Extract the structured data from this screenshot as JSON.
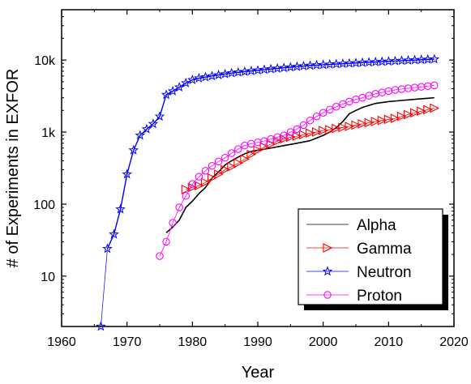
{
  "chart_data": {
    "type": "line",
    "xlabel": "Year",
    "ylabel": "# of Experiments in EXFOR",
    "xlim": [
      1960,
      2020
    ],
    "ylim": [
      2,
      50000
    ],
    "yscale": "log",
    "xticks": [
      1960,
      1970,
      1980,
      1990,
      2000,
      2010,
      2020
    ],
    "xtick_labels": [
      "1960",
      "1970",
      "1980",
      "1990",
      "2000",
      "2010",
      "2020"
    ],
    "yticks": [
      10,
      100,
      1000,
      10000
    ],
    "ytick_labels": [
      "10",
      "100",
      "1k",
      "10k"
    ],
    "grid": false,
    "legend_position": "bottom-right",
    "series": [
      {
        "name": "Alpha",
        "color": "#000000",
        "marker": "none",
        "points": [
          [
            1976,
            40
          ],
          [
            1977,
            48
          ],
          [
            1978,
            60
          ],
          [
            1979,
            90
          ],
          [
            1980,
            110
          ],
          [
            1981,
            140
          ],
          [
            1982,
            170
          ],
          [
            1983,
            230
          ],
          [
            1984,
            280
          ],
          [
            1985,
            350
          ],
          [
            1986,
            400
          ],
          [
            1987,
            450
          ],
          [
            1988,
            500
          ],
          [
            1989,
            540
          ],
          [
            1990,
            560
          ],
          [
            1992,
            600
          ],
          [
            1994,
            650
          ],
          [
            1996,
            700
          ],
          [
            1998,
            760
          ],
          [
            2000,
            900
          ],
          [
            2001,
            1000
          ],
          [
            2002,
            1150
          ],
          [
            2003,
            1400
          ],
          [
            2004,
            1800
          ],
          [
            2005,
            2000
          ],
          [
            2006,
            2200
          ],
          [
            2007,
            2350
          ],
          [
            2008,
            2500
          ],
          [
            2010,
            2650
          ],
          [
            2012,
            2750
          ],
          [
            2014,
            2850
          ],
          [
            2016,
            2950
          ],
          [
            2017,
            3000
          ]
        ]
      },
      {
        "name": "Gamma",
        "color": "#ff0000",
        "marker": "triangle-right",
        "points": [
          [
            1979,
            160
          ],
          [
            1980,
            170
          ],
          [
            1981,
            180
          ],
          [
            1982,
            200
          ],
          [
            1983,
            230
          ],
          [
            1984,
            260
          ],
          [
            1985,
            300
          ],
          [
            1986,
            330
          ],
          [
            1987,
            370
          ],
          [
            1988,
            420
          ],
          [
            1989,
            490
          ],
          [
            1990,
            560
          ],
          [
            1991,
            620
          ],
          [
            1992,
            680
          ],
          [
            1993,
            750
          ],
          [
            1994,
            800
          ],
          [
            1995,
            850
          ],
          [
            1996,
            880
          ],
          [
            1997,
            920
          ],
          [
            1998,
            970
          ],
          [
            1999,
            1000
          ],
          [
            2000,
            1050
          ],
          [
            2001,
            1080
          ],
          [
            2002,
            1120
          ],
          [
            2003,
            1160
          ],
          [
            2004,
            1200
          ],
          [
            2005,
            1250
          ],
          [
            2006,
            1300
          ],
          [
            2007,
            1350
          ],
          [
            2008,
            1400
          ],
          [
            2009,
            1450
          ],
          [
            2010,
            1500
          ],
          [
            2011,
            1550
          ],
          [
            2012,
            1650
          ],
          [
            2013,
            1750
          ],
          [
            2014,
            1850
          ],
          [
            2015,
            1950
          ],
          [
            2016,
            2050
          ],
          [
            2017,
            2150
          ]
        ]
      },
      {
        "name": "Neutron",
        "color": "#0000ff",
        "marker": "star",
        "points": [
          [
            1966,
            2
          ],
          [
            1967,
            24
          ],
          [
            1968,
            38
          ],
          [
            1969,
            85
          ],
          [
            1970,
            260
          ],
          [
            1971,
            560
          ],
          [
            1972,
            900
          ],
          [
            1973,
            1100
          ],
          [
            1974,
            1300
          ],
          [
            1975,
            1650
          ],
          [
            1976,
            3300
          ],
          [
            1977,
            3700
          ],
          [
            1978,
            4200
          ],
          [
            1979,
            4800
          ],
          [
            1980,
            5300
          ],
          [
            1981,
            5600
          ],
          [
            1982,
            5800
          ],
          [
            1983,
            6000
          ],
          [
            1984,
            6200
          ],
          [
            1985,
            6400
          ],
          [
            1986,
            6600
          ],
          [
            1987,
            6750
          ],
          [
            1988,
            6900
          ],
          [
            1989,
            7050
          ],
          [
            1990,
            7200
          ],
          [
            1991,
            7350
          ],
          [
            1992,
            7500
          ],
          [
            1993,
            7650
          ],
          [
            1994,
            7800
          ],
          [
            1995,
            7950
          ],
          [
            1996,
            8100
          ],
          [
            1997,
            8250
          ],
          [
            1998,
            8400
          ],
          [
            1999,
            8500
          ],
          [
            2000,
            8600
          ],
          [
            2001,
            8700
          ],
          [
            2002,
            8800
          ],
          [
            2003,
            8900
          ],
          [
            2004,
            9000
          ],
          [
            2005,
            9100
          ],
          [
            2006,
            9200
          ],
          [
            2007,
            9300
          ],
          [
            2008,
            9400
          ],
          [
            2009,
            9500
          ],
          [
            2010,
            9600
          ],
          [
            2011,
            9700
          ],
          [
            2012,
            9800
          ],
          [
            2013,
            9900
          ],
          [
            2014,
            10000
          ],
          [
            2015,
            10100
          ],
          [
            2016,
            10200
          ],
          [
            2017,
            10300
          ]
        ]
      },
      {
        "name": "Proton",
        "color": "#ff00ff",
        "marker": "circle",
        "points": [
          [
            1975,
            19
          ],
          [
            1976,
            30
          ],
          [
            1977,
            55
          ],
          [
            1978,
            90
          ],
          [
            1979,
            130
          ],
          [
            1980,
            190
          ],
          [
            1981,
            240
          ],
          [
            1982,
            290
          ],
          [
            1983,
            340
          ],
          [
            1984,
            390
          ],
          [
            1985,
            440
          ],
          [
            1986,
            510
          ],
          [
            1987,
            580
          ],
          [
            1988,
            650
          ],
          [
            1989,
            690
          ],
          [
            1990,
            720
          ],
          [
            1991,
            750
          ],
          [
            1992,
            800
          ],
          [
            1993,
            850
          ],
          [
            1994,
            900
          ],
          [
            1995,
            1000
          ],
          [
            1996,
            1100
          ],
          [
            1997,
            1250
          ],
          [
            1998,
            1450
          ],
          [
            1999,
            1650
          ],
          [
            2000,
            1850
          ],
          [
            2001,
            2050
          ],
          [
            2002,
            2250
          ],
          [
            2003,
            2450
          ],
          [
            2004,
            2650
          ],
          [
            2005,
            2850
          ],
          [
            2006,
            3000
          ],
          [
            2007,
            3200
          ],
          [
            2008,
            3400
          ],
          [
            2009,
            3550
          ],
          [
            2010,
            3700
          ],
          [
            2011,
            3850
          ],
          [
            2012,
            3950
          ],
          [
            2013,
            4050
          ],
          [
            2014,
            4150
          ],
          [
            2015,
            4250
          ],
          [
            2016,
            4350
          ],
          [
            2017,
            4450
          ]
        ]
      }
    ]
  }
}
